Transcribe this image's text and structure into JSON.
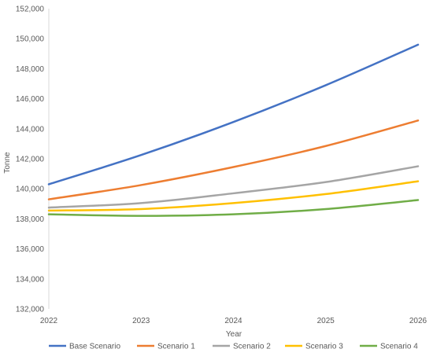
{
  "chart_data": {
    "type": "line",
    "title": "",
    "xlabel": "Year",
    "ylabel": "Tonne",
    "x": [
      2022,
      2023,
      2024,
      2025,
      2026
    ],
    "ylim": [
      132000,
      152000
    ],
    "ytick_step": 2000,
    "grid": false,
    "legend_position": "bottom",
    "series": [
      {
        "name": "Base Scenario",
        "color": "#4472C4",
        "values": [
          140300,
          142250,
          144450,
          146900,
          149600
        ]
      },
      {
        "name": "Scenario 1",
        "color": "#ED7D31",
        "values": [
          139300,
          140250,
          141450,
          142850,
          144550
        ]
      },
      {
        "name": "Scenario 2",
        "color": "#A5A5A5",
        "values": [
          138750,
          139050,
          139700,
          140450,
          141500
        ]
      },
      {
        "name": "Scenario 3",
        "color": "#FFC000",
        "values": [
          138550,
          138650,
          139050,
          139650,
          140500
        ]
      },
      {
        "name": "Scenario 4",
        "color": "#70AD47",
        "values": [
          138300,
          138200,
          138300,
          138650,
          139250
        ]
      }
    ]
  }
}
